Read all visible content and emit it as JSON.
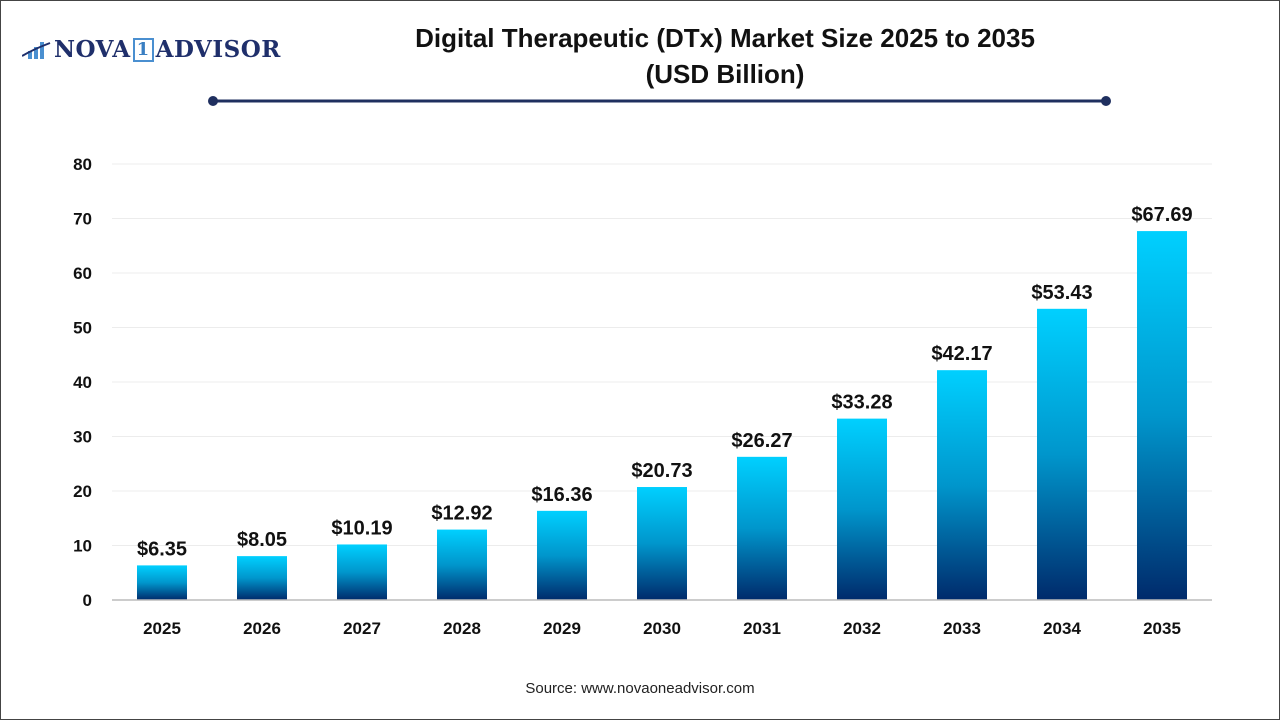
{
  "logo": {
    "text_left": "NOVA",
    "text_mid": "1",
    "text_right": "ADVISOR"
  },
  "source": "Source: www.novaoneadvisor.com",
  "colors": {
    "bar_top": "#00d0ff",
    "bar_bottom": "#002a6b",
    "title_line": "#1f2f5f"
  },
  "chart_data": {
    "type": "bar",
    "title": "Digital Therapeutic (DTx) Market Size 2025 to 2035",
    "subtitle": "(USD Billion)",
    "xlabel": "",
    "ylabel": "",
    "ylim": [
      0,
      80
    ],
    "yticks": [
      0,
      10,
      20,
      30,
      40,
      50,
      60,
      70,
      80
    ],
    "grid": true,
    "categories": [
      "2025",
      "2026",
      "2027",
      "2028",
      "2029",
      "2030",
      "2031",
      "2032",
      "2033",
      "2034",
      "2035"
    ],
    "values": [
      6.35,
      8.05,
      10.19,
      12.92,
      16.36,
      20.73,
      26.27,
      33.28,
      42.17,
      53.43,
      67.69
    ],
    "labels": [
      "$6.35",
      "$8.05",
      "$10.19",
      "$12.92",
      "$16.36",
      "$20.73",
      "$26.27",
      "$33.28",
      "$42.17",
      "$53.43",
      "$67.69"
    ]
  }
}
